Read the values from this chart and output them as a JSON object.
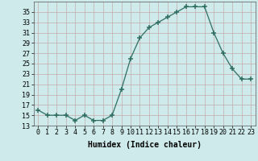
{
  "x": [
    0,
    1,
    2,
    3,
    4,
    5,
    6,
    7,
    8,
    9,
    10,
    11,
    12,
    13,
    14,
    15,
    16,
    17,
    18,
    19,
    20,
    21,
    22,
    23
  ],
  "y": [
    16,
    15,
    15,
    15,
    14,
    15,
    14,
    14,
    15,
    20,
    26,
    30,
    32,
    33,
    34,
    35,
    36,
    36,
    36,
    31,
    27,
    24,
    22,
    22
  ],
  "line_color": "#2d6e63",
  "bg_color": "#ceeaea",
  "grid_color_v": "#c8a8a8",
  "grid_color_h": "#c8a8a8",
  "xlabel": "Humidex (Indice chaleur)",
  "xlim": [
    -0.5,
    23.5
  ],
  "ylim": [
    13,
    37
  ],
  "yticks": [
    13,
    15,
    17,
    19,
    21,
    23,
    25,
    27,
    29,
    31,
    33,
    35
  ],
  "xticks": [
    0,
    1,
    2,
    3,
    4,
    5,
    6,
    7,
    8,
    9,
    10,
    11,
    12,
    13,
    14,
    15,
    16,
    17,
    18,
    19,
    20,
    21,
    22,
    23
  ],
  "xtick_labels": [
    "0",
    "1",
    "2",
    "3",
    "4",
    "5",
    "6",
    "7",
    "8",
    "9",
    "10",
    "11",
    "12",
    "13",
    "14",
    "15",
    "16",
    "17",
    "18",
    "19",
    "20",
    "21",
    "22",
    "23"
  ],
  "tick_fontsize": 6,
  "label_fontsize": 7
}
